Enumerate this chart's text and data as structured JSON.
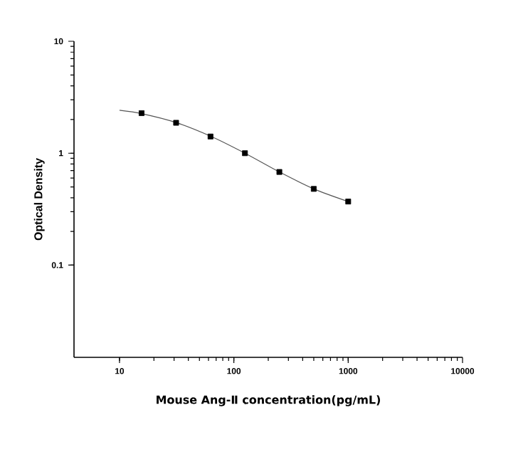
{
  "chart_data": {
    "type": "scatter",
    "xlabel": "Mouse Ang-Ⅱ concentration(pg/mL)",
    "ylabel": "Optical Density",
    "log": "xy",
    "xlim": [
      4,
      10000
    ],
    "ylim": [
      0.015,
      10
    ],
    "xticks": [
      10,
      100,
      1000,
      10000
    ],
    "yticks": [
      0.1,
      1,
      10
    ],
    "series": [
      {
        "type": "line",
        "color": "#555555",
        "marker": "none",
        "line_style": "solid",
        "x": [
          10,
          15.6,
          31.25,
          62.5,
          125,
          250,
          500,
          1000
        ],
        "values": [
          2.42,
          2.26,
          1.88,
          1.42,
          1.0,
          0.68,
          0.48,
          0.37
        ]
      },
      {
        "color": "#000000",
        "marker": "square",
        "x": [
          15.6,
          31.25,
          62.5,
          125,
          250,
          500,
          1000
        ],
        "values": [
          2.28,
          1.87,
          1.41,
          1.0,
          0.68,
          0.48,
          0.37
        ]
      }
    ]
  }
}
